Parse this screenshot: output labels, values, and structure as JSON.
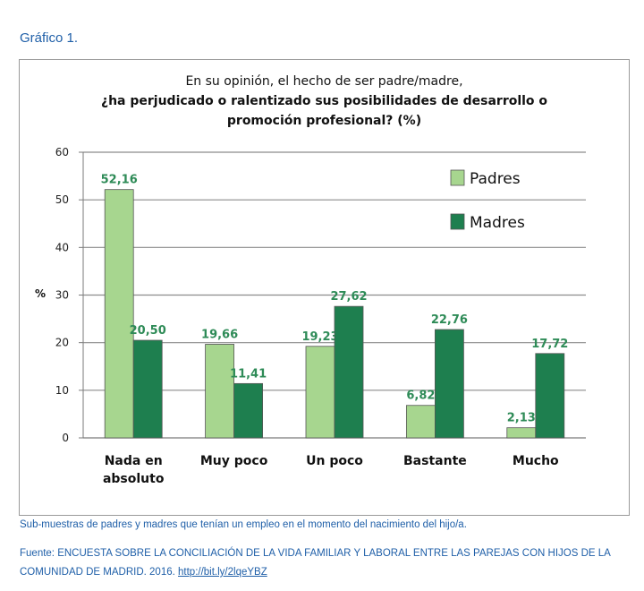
{
  "header": {
    "label": "Gráfico 1."
  },
  "chart_data": {
    "type": "bar",
    "title_line1": "En su opinión, el hecho de ser padre/madre,",
    "title_line2": "¿ha perjudicado o ralentizado sus posibilidades de desarrollo o",
    "title_line3": "promoción profesional? (%)",
    "ylabel": "%",
    "xlabel": "",
    "ylim": [
      0,
      60
    ],
    "yticks": [
      0,
      10,
      20,
      30,
      40,
      50,
      60
    ],
    "grid": true,
    "legend_position": "top-right",
    "categories": [
      {
        "line1": "Nada en",
        "line2": "absoluto"
      },
      {
        "line1": "Muy poco",
        "line2": ""
      },
      {
        "line1": "Un poco",
        "line2": ""
      },
      {
        "line1": "Bastante",
        "line2": ""
      },
      {
        "line1": "Mucho",
        "line2": ""
      }
    ],
    "series": [
      {
        "name": "Padres",
        "color": "#a7d68f",
        "values": [
          52.16,
          19.66,
          19.23,
          6.82,
          2.13
        ],
        "labels": [
          "52,16",
          "19,66",
          "19,23",
          "6,82",
          "2,13"
        ]
      },
      {
        "name": "Madres",
        "color": "#1e7f4f",
        "values": [
          20.5,
          11.41,
          27.62,
          22.76,
          17.72
        ],
        "labels": [
          "20,50",
          "11,41",
          "27,62",
          "22,76",
          "17,72"
        ]
      }
    ],
    "label_color": "#2e8b57"
  },
  "footer": {
    "note": "Sub-muestras de padres y madres que tenían un empleo en el momento del nacimiento del hijo/a.",
    "source_text": "Fuente: ENCUESTA SOBRE LA CONCILIACIÓN DE LA VIDA FAMILIAR Y LABORAL ENTRE LAS PAREJAS CON HIJOS DE LA COMUNIDAD DE MADRID. 2016.",
    "source_link": "http://bit.ly/2lqeYBZ"
  }
}
